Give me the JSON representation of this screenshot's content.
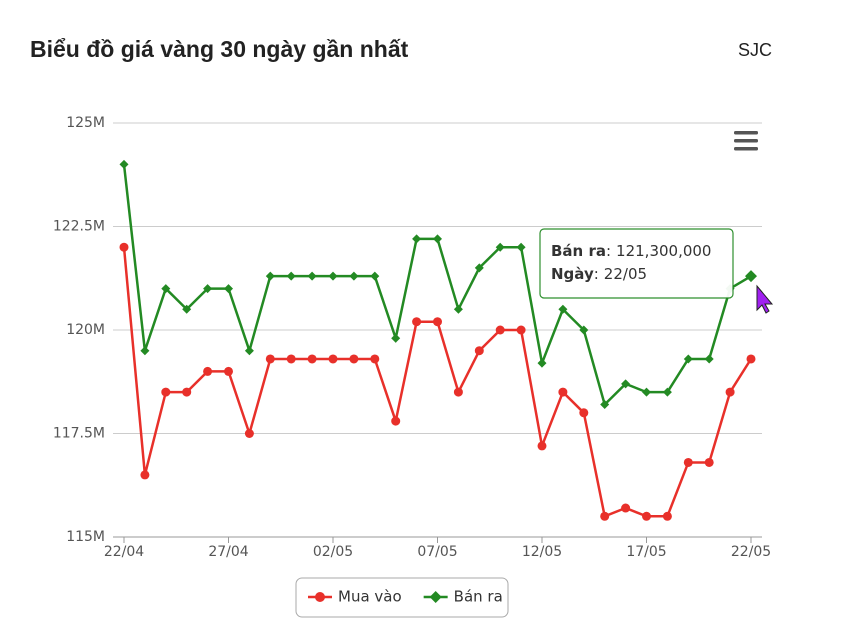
{
  "title": "Biểu đồ giá vàng 30 ngày gần nhất",
  "brand": "SJC",
  "chart_data": {
    "type": "line",
    "categories": [
      "22/04",
      null,
      null,
      null,
      null,
      "27/04",
      null,
      null,
      null,
      null,
      "02/05",
      null,
      null,
      null,
      null,
      "07/05",
      null,
      null,
      null,
      null,
      "12/05",
      null,
      null,
      null,
      null,
      "17/05",
      null,
      null,
      null,
      null,
      "22/05"
    ],
    "series": [
      {
        "name": "Mua vào",
        "color": "#e8302a",
        "values": [
          122000000,
          116500000,
          118500000,
          118500000,
          119000000,
          119000000,
          117500000,
          119300000,
          119300000,
          119300000,
          119300000,
          119300000,
          119300000,
          117800000,
          120200000,
          120200000,
          118500000,
          119500000,
          120000000,
          120000000,
          117200000,
          118500000,
          118000000,
          115500000,
          115700000,
          115500000,
          115500000,
          116800000,
          116800000,
          118500000,
          119300000
        ]
      },
      {
        "name": "Bán ra",
        "color": "#238a23",
        "values": [
          124000000,
          119500000,
          121000000,
          120500000,
          121000000,
          121000000,
          119500000,
          121300000,
          121300000,
          121300000,
          121300000,
          121300000,
          121300000,
          119800000,
          122200000,
          122200000,
          120500000,
          121500000,
          122000000,
          122000000,
          119200000,
          120500000,
          120000000,
          118200000,
          118700000,
          118500000,
          118500000,
          119300000,
          119300000,
          121000000,
          121300000
        ]
      }
    ],
    "ylim": [
      115000000,
      125000000
    ],
    "yticks": [
      {
        "value": 115000000,
        "label": "115M"
      },
      {
        "value": 117500000,
        "label": "117.5M"
      },
      {
        "value": 120000000,
        "label": "120M"
      },
      {
        "value": 122500000,
        "label": "122.5M"
      },
      {
        "value": 125000000,
        "label": "125M"
      }
    ],
    "grid": true,
    "tooltip": {
      "separator": ":",
      "value_label": "121,300,000",
      "date_title": "Ngày"
    }
  }
}
